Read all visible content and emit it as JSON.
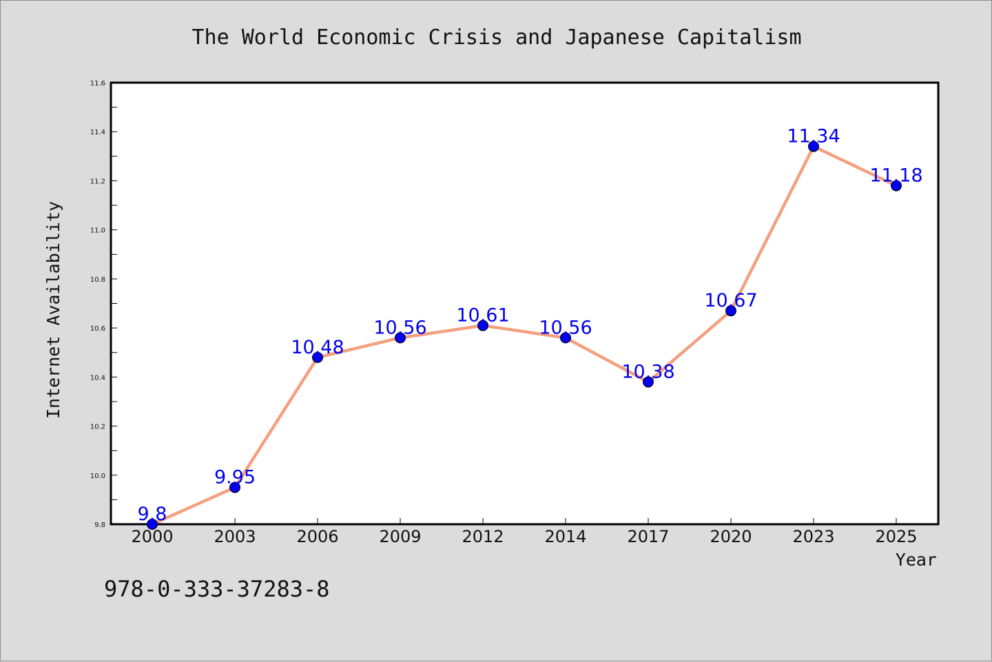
{
  "chart_data": {
    "type": "line",
    "title": "The World Economic Crisis and Japanese Capitalism",
    "xlabel": "Year",
    "ylabel": "Internet Availability",
    "categories": [
      "2000",
      "2003",
      "2006",
      "2009",
      "2012",
      "2014",
      "2017",
      "2020",
      "2023",
      "2025"
    ],
    "series": [
      {
        "values": [
          9.8,
          9.95,
          10.48,
          10.56,
          10.61,
          10.56,
          10.38,
          10.67,
          11.34,
          11.18
        ]
      }
    ],
    "data_labels": [
      "9.8",
      "9.95",
      "10.48",
      "10.56",
      "10.61",
      "10.56",
      "10.38",
      "10.67",
      "11.34",
      "11.18"
    ],
    "ylim": [
      9.8,
      11.6
    ],
    "yticks": [
      9.8,
      10.0,
      10.2,
      10.4,
      10.6,
      10.8,
      11.0,
      11.2,
      11.4,
      11.6
    ],
    "ytick_labels": [
      "9.8",
      "10.0",
      "10.2",
      "10.4",
      "10.6",
      "10.8",
      "11.0",
      "11.2",
      "11.4",
      "11.6"
    ],
    "grid": false,
    "legend": "none"
  },
  "annotation": "978-0-333-37283-8",
  "colors": {
    "line": "#f4a07f",
    "marker": "#0000ee",
    "data_label": "#0000ee",
    "background": "#dcdcdc",
    "plot_background": "#ffffff"
  }
}
